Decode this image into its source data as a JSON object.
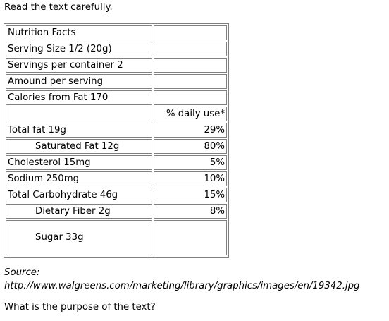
{
  "instruction": "Read the text carefully.",
  "nutrition_table": {
    "rows": [
      {
        "label": "Nutrition Facts",
        "value": ""
      },
      {
        "label": "Serving Size 1/2 (20g)",
        "value": ""
      },
      {
        "label": "Servings per container 2",
        "value": ""
      },
      {
        "label": "Amound per serving",
        "value": ""
      },
      {
        "label": "Calories from Fat 170",
        "value": ""
      },
      {
        "label": "",
        "value": "% daily use*"
      },
      {
        "label": "Total fat 19g",
        "value": "29%"
      },
      {
        "label": "Saturated Fat 12g",
        "value": "80%"
      },
      {
        "label": "Cholesterol 15mg",
        "value": "5%"
      },
      {
        "label": "Sodium 250mg",
        "value": "10%"
      },
      {
        "label": "Total Carbohydrate 46g",
        "value": "15%"
      },
      {
        "label": "Dietary Fiber 2g",
        "value": "8%"
      },
      {
        "label": "Sugar 33g",
        "value": ""
      }
    ]
  },
  "source": {
    "label": "Source:",
    "url": "http://www.walgreens.com/marketing/library/graphics/images/en/19342.jpg"
  },
  "question": "What is the purpose of the text?"
}
